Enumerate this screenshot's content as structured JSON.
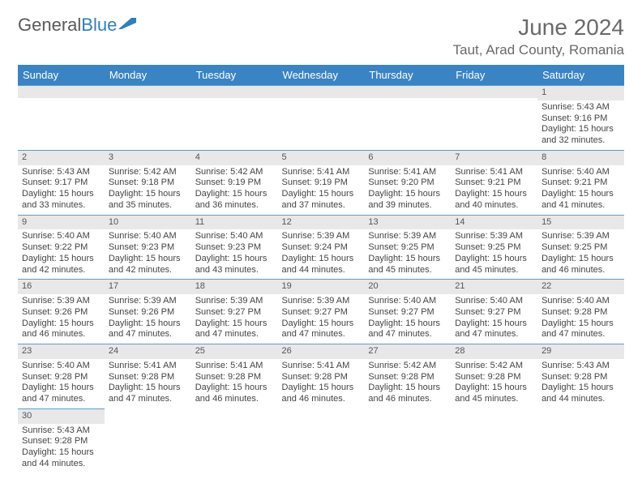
{
  "logo": {
    "text1": "General",
    "text2": "Blue"
  },
  "title": "June 2024",
  "location": "Taut, Arad County, Romania",
  "colors": {
    "header_bg": "#3a84c4",
    "header_text": "#ffffff",
    "daynum_bg": "#e8e8e8",
    "rule": "#5f9bc9",
    "text": "#444444",
    "title": "#6a6a6a"
  },
  "weekday_headers": [
    "Sunday",
    "Monday",
    "Tuesday",
    "Wednesday",
    "Thursday",
    "Friday",
    "Saturday"
  ],
  "weeks": [
    [
      null,
      null,
      null,
      null,
      null,
      null,
      {
        "n": "1",
        "sr": "5:43 AM",
        "ss": "9:16 PM",
        "d1": "15 hours",
        "d2": "and 32 minutes."
      }
    ],
    [
      {
        "n": "2",
        "sr": "5:43 AM",
        "ss": "9:17 PM",
        "d1": "15 hours",
        "d2": "and 33 minutes."
      },
      {
        "n": "3",
        "sr": "5:42 AM",
        "ss": "9:18 PM",
        "d1": "15 hours",
        "d2": "and 35 minutes."
      },
      {
        "n": "4",
        "sr": "5:42 AM",
        "ss": "9:19 PM",
        "d1": "15 hours",
        "d2": "and 36 minutes."
      },
      {
        "n": "5",
        "sr": "5:41 AM",
        "ss": "9:19 PM",
        "d1": "15 hours",
        "d2": "and 37 minutes."
      },
      {
        "n": "6",
        "sr": "5:41 AM",
        "ss": "9:20 PM",
        "d1": "15 hours",
        "d2": "and 39 minutes."
      },
      {
        "n": "7",
        "sr": "5:41 AM",
        "ss": "9:21 PM",
        "d1": "15 hours",
        "d2": "and 40 minutes."
      },
      {
        "n": "8",
        "sr": "5:40 AM",
        "ss": "9:21 PM",
        "d1": "15 hours",
        "d2": "and 41 minutes."
      }
    ],
    [
      {
        "n": "9",
        "sr": "5:40 AM",
        "ss": "9:22 PM",
        "d1": "15 hours",
        "d2": "and 42 minutes."
      },
      {
        "n": "10",
        "sr": "5:40 AM",
        "ss": "9:23 PM",
        "d1": "15 hours",
        "d2": "and 42 minutes."
      },
      {
        "n": "11",
        "sr": "5:40 AM",
        "ss": "9:23 PM",
        "d1": "15 hours",
        "d2": "and 43 minutes."
      },
      {
        "n": "12",
        "sr": "5:39 AM",
        "ss": "9:24 PM",
        "d1": "15 hours",
        "d2": "and 44 minutes."
      },
      {
        "n": "13",
        "sr": "5:39 AM",
        "ss": "9:25 PM",
        "d1": "15 hours",
        "d2": "and 45 minutes."
      },
      {
        "n": "14",
        "sr": "5:39 AM",
        "ss": "9:25 PM",
        "d1": "15 hours",
        "d2": "and 45 minutes."
      },
      {
        "n": "15",
        "sr": "5:39 AM",
        "ss": "9:25 PM",
        "d1": "15 hours",
        "d2": "and 46 minutes."
      }
    ],
    [
      {
        "n": "16",
        "sr": "5:39 AM",
        "ss": "9:26 PM",
        "d1": "15 hours",
        "d2": "and 46 minutes."
      },
      {
        "n": "17",
        "sr": "5:39 AM",
        "ss": "9:26 PM",
        "d1": "15 hours",
        "d2": "and 47 minutes."
      },
      {
        "n": "18",
        "sr": "5:39 AM",
        "ss": "9:27 PM",
        "d1": "15 hours",
        "d2": "and 47 minutes."
      },
      {
        "n": "19",
        "sr": "5:39 AM",
        "ss": "9:27 PM",
        "d1": "15 hours",
        "d2": "and 47 minutes."
      },
      {
        "n": "20",
        "sr": "5:40 AM",
        "ss": "9:27 PM",
        "d1": "15 hours",
        "d2": "and 47 minutes."
      },
      {
        "n": "21",
        "sr": "5:40 AM",
        "ss": "9:27 PM",
        "d1": "15 hours",
        "d2": "and 47 minutes."
      },
      {
        "n": "22",
        "sr": "5:40 AM",
        "ss": "9:28 PM",
        "d1": "15 hours",
        "d2": "and 47 minutes."
      }
    ],
    [
      {
        "n": "23",
        "sr": "5:40 AM",
        "ss": "9:28 PM",
        "d1": "15 hours",
        "d2": "and 47 minutes."
      },
      {
        "n": "24",
        "sr": "5:41 AM",
        "ss": "9:28 PM",
        "d1": "15 hours",
        "d2": "and 47 minutes."
      },
      {
        "n": "25",
        "sr": "5:41 AM",
        "ss": "9:28 PM",
        "d1": "15 hours",
        "d2": "and 46 minutes."
      },
      {
        "n": "26",
        "sr": "5:41 AM",
        "ss": "9:28 PM",
        "d1": "15 hours",
        "d2": "and 46 minutes."
      },
      {
        "n": "27",
        "sr": "5:42 AM",
        "ss": "9:28 PM",
        "d1": "15 hours",
        "d2": "and 46 minutes."
      },
      {
        "n": "28",
        "sr": "5:42 AM",
        "ss": "9:28 PM",
        "d1": "15 hours",
        "d2": "and 45 minutes."
      },
      {
        "n": "29",
        "sr": "5:43 AM",
        "ss": "9:28 PM",
        "d1": "15 hours",
        "d2": "and 44 minutes."
      }
    ],
    [
      {
        "n": "30",
        "sr": "5:43 AM",
        "ss": "9:28 PM",
        "d1": "15 hours",
        "d2": "and 44 minutes."
      },
      null,
      null,
      null,
      null,
      null,
      null
    ]
  ],
  "labels": {
    "sunrise": "Sunrise:",
    "sunset": "Sunset:",
    "daylight": "Daylight:"
  }
}
